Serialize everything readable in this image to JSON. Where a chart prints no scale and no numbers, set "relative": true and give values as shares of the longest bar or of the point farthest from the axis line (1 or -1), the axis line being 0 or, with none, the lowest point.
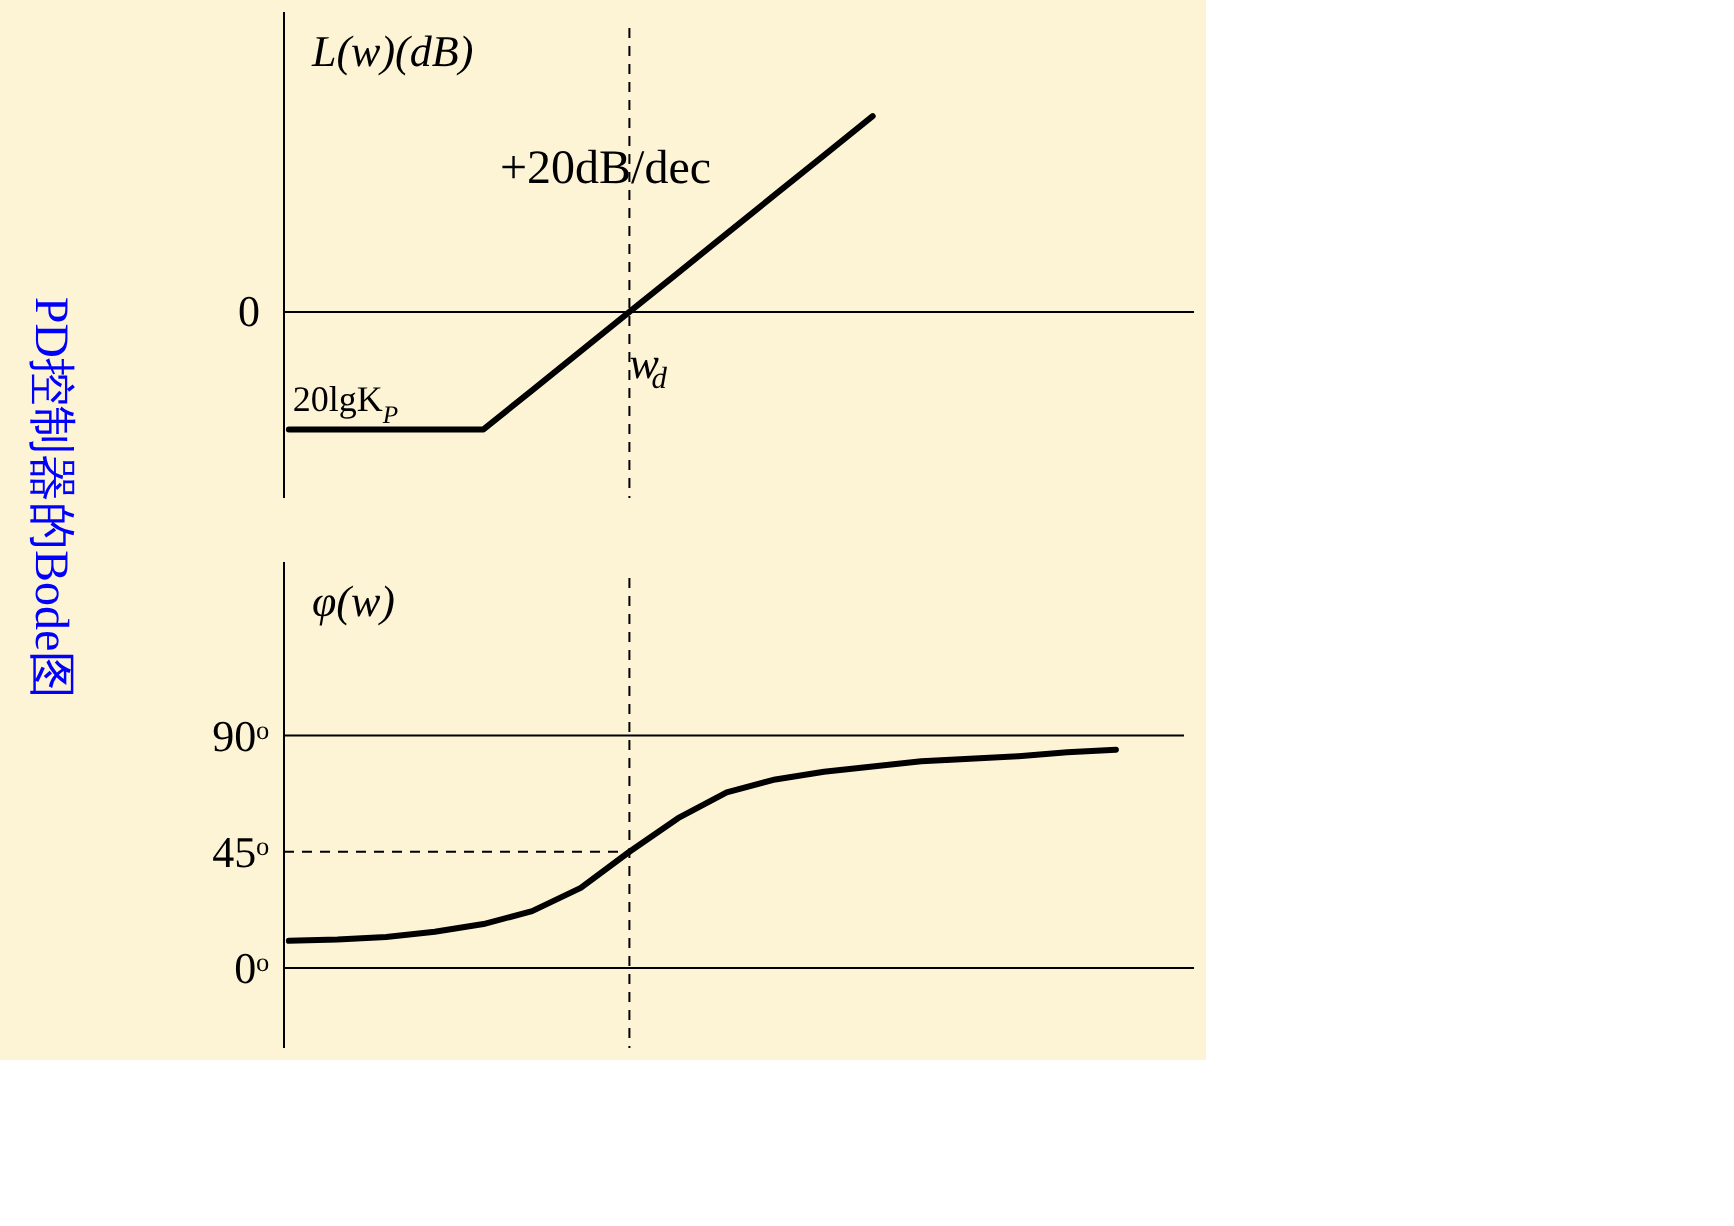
{
  "chart_data": [
    {
      "type": "line",
      "title": "PD控制器的Bode图",
      "ylabel": "L(w)(dB)",
      "relative": true,
      "categories": [
        null,
        null,
        null,
        null,
        null,
        null,
        null,
        null,
        null,
        null,
        null,
        null,
        null,
        null,
        null,
        null,
        null,
        null
      ],
      "series": [
        {
          "color": "#000000",
          "values": [
            -0.6,
            -0.6,
            -0.6,
            -0.6,
            -0.6,
            -0.4,
            -0.2,
            0,
            0.2,
            0.4,
            0.6,
            0.8,
            1,
            null,
            null,
            null,
            null,
            null
          ]
        }
      ],
      "ref_lines": [
        {
          "axis": "y",
          "value": 0,
          "label": "0"
        }
      ],
      "annotations": [
        "+20dB/dec",
        {
          "text": "w$_{d}$",
          "y": 0
        },
        {
          "text": "20lgK$_{P}$",
          "y": -0.6
        }
      ]
    },
    {
      "type": "line",
      "ylabel": "φ(w)",
      "categories": [
        null,
        null,
        null,
        null,
        null,
        null,
        null,
        null,
        null,
        null,
        null,
        null,
        null,
        null,
        null,
        null,
        null,
        null
      ],
      "ylim": [
        -31,
        151
      ],
      "yticks": [
        {
          "value": 0,
          "label": "0ᵒ"
        },
        {
          "value": 45,
          "label": "45ᵒ"
        },
        {
          "value": 90,
          "label": "90ᵒ"
        }
      ],
      "series": [
        {
          "color": "#000000",
          "values": [
            10.5,
            11,
            12,
            14,
            17,
            22,
            31,
            45,
            58,
            68,
            73,
            76,
            78,
            80,
            81,
            82,
            83.5,
            84.5
          ]
        }
      ],
      "ref_lines": [
        {
          "axis": "y",
          "value": 90,
          "color": "#000000"
        },
        {
          "axis": "y",
          "value": 45,
          "line_style": "dashed"
        }
      ]
    }
  ]
}
